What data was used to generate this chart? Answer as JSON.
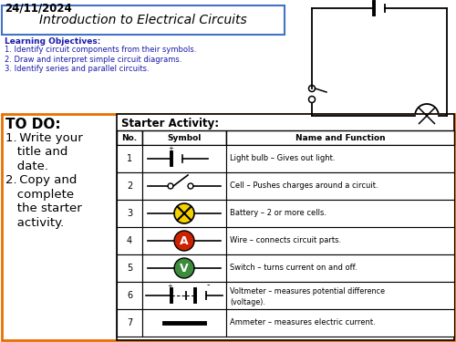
{
  "date": "24/11/2024",
  "title": "Introduction to Electrical Circuits",
  "learning_objectives_header": "Learning Objectives:",
  "learning_objectives": [
    "1. Identify circuit components from their symbols.",
    "2. Draw and interpret simple circuit diagrams.",
    "3. Identify series and parallel circuits."
  ],
  "todo_header": "TO DO:",
  "name_funcs": [
    "Light bulb – Gives out light.",
    "Cell – Pushes charges around a circuit.",
    "Battery – 2 or more cells.",
    "Wire – connects circuit parts.",
    "Switch – turns current on and off.",
    "Voltmeter – measures potential difference\n(voltage).",
    "Ammeter – measures electric current."
  ],
  "colors": {
    "background": "#ffffff",
    "title_box_border": "#4472c4",
    "date_text": "#000000",
    "title_text": "#000000",
    "learning_obj_header": "#1a1aaa",
    "learning_obj_text": "#1a1aaa",
    "todo_border": "#e87000",
    "bulb_color": "#f5d000",
    "ammeter_color": "#cc2200",
    "voltmeter_color": "#3d8c3d"
  }
}
